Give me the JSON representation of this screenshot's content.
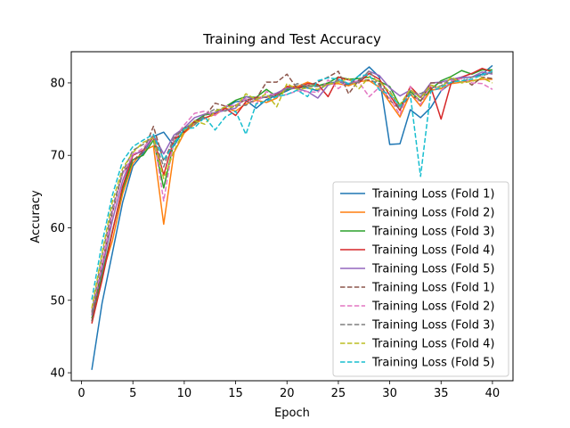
{
  "chart_data": {
    "type": "line",
    "title": "Training and Test Accuracy",
    "xlabel": "Epoch",
    "ylabel": "Accuracy",
    "xlim": [
      -1,
      42
    ],
    "ylim": [
      38.9,
      84.3
    ],
    "xticks": [
      0,
      5,
      10,
      15,
      20,
      25,
      30,
      35,
      40
    ],
    "yticks": [
      40,
      50,
      60,
      70,
      80
    ],
    "legend_position": "lower-right",
    "x": [
      1,
      2,
      3,
      4,
      5,
      6,
      7,
      8,
      9,
      10,
      11,
      12,
      13,
      14,
      15,
      16,
      17,
      18,
      19,
      20,
      21,
      22,
      23,
      24,
      25,
      26,
      27,
      28,
      29,
      30,
      31,
      32,
      33,
      34,
      35,
      36,
      37,
      38,
      39,
      40
    ],
    "series": [
      {
        "name": "Training Loss (Fold 1)",
        "color": "#1f77b4",
        "style": "solid",
        "values": [
          40.4,
          49.6,
          56.5,
          63.5,
          68.5,
          70.3,
          72.6,
          73.2,
          71.3,
          73.6,
          74.7,
          75.6,
          75.9,
          76.6,
          77.4,
          77.6,
          76.5,
          77.7,
          78.3,
          78.9,
          79.6,
          79.3,
          78.9,
          79.9,
          80.2,
          79.7,
          81.0,
          82.2,
          80.8,
          71.5,
          71.6,
          76.3,
          75.2,
          76.6,
          78.9,
          80.0,
          80.7,
          80.8,
          81.2,
          82.4
        ]
      },
      {
        "name": "Training Loss (Fold 2)",
        "color": "#ff7f0e",
        "style": "solid",
        "values": [
          48.0,
          53.6,
          58.2,
          64.7,
          68.9,
          70.6,
          71.3,
          60.5,
          70.4,
          73.1,
          74.3,
          75.2,
          75.6,
          76.5,
          76.1,
          77.1,
          77.6,
          77.3,
          77.9,
          79.5,
          79.5,
          80.1,
          79.6,
          79.8,
          79.9,
          79.6,
          80.2,
          80.3,
          79.4,
          77.3,
          75.3,
          78.5,
          76.8,
          79.0,
          79.2,
          79.9,
          80.1,
          80.3,
          80.5,
          80.5
        ]
      },
      {
        "name": "Training Loss (Fold 3)",
        "color": "#2ca02c",
        "style": "solid",
        "values": [
          47.5,
          53.5,
          59.5,
          65.3,
          69.4,
          70.0,
          72.1,
          65.5,
          71.8,
          73.3,
          74.6,
          75.6,
          75.8,
          76.7,
          77.6,
          78.1,
          78.0,
          79.1,
          78.1,
          79.1,
          79.3,
          79.6,
          79.6,
          80.0,
          80.8,
          80.5,
          80.6,
          80.8,
          80.2,
          79.5,
          76.8,
          78.8,
          77.5,
          79.1,
          80.3,
          80.9,
          81.7,
          81.2,
          81.8,
          81.8
        ]
      },
      {
        "name": "Training Loss (Fold 4)",
        "color": "#d62728",
        "style": "solid",
        "values": [
          46.8,
          52.8,
          59.4,
          65.7,
          70.0,
          70.7,
          72.5,
          67.3,
          72.2,
          73.2,
          74.7,
          75.1,
          75.8,
          76.5,
          75.5,
          77.4,
          78.0,
          78.0,
          78.4,
          79.5,
          79.3,
          79.9,
          79.8,
          78.1,
          80.8,
          80.4,
          80.0,
          81.3,
          80.5,
          78.3,
          76.2,
          79.5,
          78.0,
          79.4,
          75.0,
          80.1,
          80.8,
          81.3,
          82.0,
          81.5
        ]
      },
      {
        "name": "Training Loss (Fold 5)",
        "color": "#9467bd",
        "style": "solid",
        "values": [
          47.9,
          54.2,
          61.0,
          66.5,
          70.2,
          70.5,
          72.8,
          70.2,
          72.8,
          73.8,
          75.2,
          75.7,
          75.9,
          76.2,
          76.5,
          78.1,
          77.7,
          78.1,
          78.6,
          79.3,
          79.2,
          78.8,
          77.9,
          79.7,
          80.2,
          79.9,
          80.3,
          81.6,
          81.0,
          79.3,
          78.2,
          79.0,
          78.1,
          80.0,
          80.1,
          80.5,
          80.8,
          80.8,
          81.5,
          81.2
        ]
      },
      {
        "name": "Training Loss (Fold 1)",
        "color": "#8c564b",
        "style": "dashed",
        "values": [
          47.1,
          54.9,
          62.0,
          67.6,
          69.3,
          70.5,
          74.0,
          69.2,
          72.3,
          73.8,
          74.4,
          75.4,
          77.2,
          76.8,
          76.9,
          77.7,
          77.8,
          80.1,
          80.1,
          81.2,
          79.2,
          79.6,
          80.1,
          80.8,
          81.6,
          78.5,
          80.4,
          80.4,
          79.9,
          77.6,
          76.4,
          78.4,
          77.5,
          80.0,
          80.0,
          80.0,
          80.7,
          79.7,
          80.8,
          80.6
        ]
      },
      {
        "name": "Training Loss (Fold 2)",
        "color": "#e377c2",
        "style": "dashed",
        "values": [
          48.5,
          55.0,
          62.2,
          67.4,
          70.1,
          71.0,
          72.8,
          63.7,
          72.3,
          74.2,
          75.8,
          76.1,
          75.5,
          76.8,
          76.9,
          77.8,
          77.1,
          78.8,
          78.1,
          78.4,
          78.9,
          78.8,
          78.7,
          80.4,
          79.2,
          80.4,
          80.1,
          78.1,
          79.4,
          77.9,
          75.6,
          79.5,
          77.0,
          79.7,
          78.9,
          80.3,
          80.6,
          80.0,
          79.9,
          79.1
        ]
      },
      {
        "name": "Training Loss (Fold 3)",
        "color": "#7f7f7f",
        "style": "dashed",
        "values": [
          48.3,
          56.2,
          62.7,
          67.7,
          70.7,
          71.5,
          72.7,
          68.4,
          72.6,
          73.7,
          74.2,
          75.6,
          76.4,
          76.1,
          76.9,
          76.9,
          77.8,
          78.1,
          78.3,
          79.1,
          79.9,
          79.5,
          79.5,
          79.8,
          80.4,
          79.9,
          80.1,
          81.7,
          79.6,
          78.9,
          76.4,
          78.7,
          78.5,
          79.3,
          79.6,
          80.6,
          80.1,
          80.8,
          81.0,
          81.4
        ]
      },
      {
        "name": "Training Loss (Fold 4)",
        "color": "#bcbd22",
        "style": "dashed",
        "values": [
          48.9,
          56.5,
          63.6,
          68.2,
          70.4,
          71.8,
          72.4,
          66.8,
          70.6,
          73.4,
          74.8,
          74.3,
          76.1,
          76.7,
          76.7,
          78.5,
          77.7,
          78.5,
          76.7,
          79.9,
          79.1,
          79.3,
          79.1,
          79.8,
          80.1,
          80.6,
          79.2,
          80.8,
          80.2,
          78.7,
          77.0,
          79.1,
          77.9,
          79.7,
          79.3,
          80.8,
          80.0,
          80.2,
          80.7,
          80.0
        ]
      },
      {
        "name": "Training Loss (Fold 5)",
        "color": "#17becf",
        "style": "dashed",
        "values": [
          50.1,
          57.9,
          64.5,
          69.2,
          71.2,
          72.1,
          72.9,
          69.4,
          71.5,
          73.7,
          73.8,
          75.3,
          73.5,
          75.3,
          76.1,
          72.9,
          77.1,
          77.5,
          78.1,
          78.4,
          79.0,
          78.1,
          80.3,
          80.7,
          80.5,
          79.9,
          81.0,
          81.1,
          79.0,
          78.4,
          76.8,
          78.4,
          67.1,
          78.8,
          79.4,
          80.1,
          80.3,
          80.5,
          81.1,
          81.6
        ]
      }
    ]
  }
}
